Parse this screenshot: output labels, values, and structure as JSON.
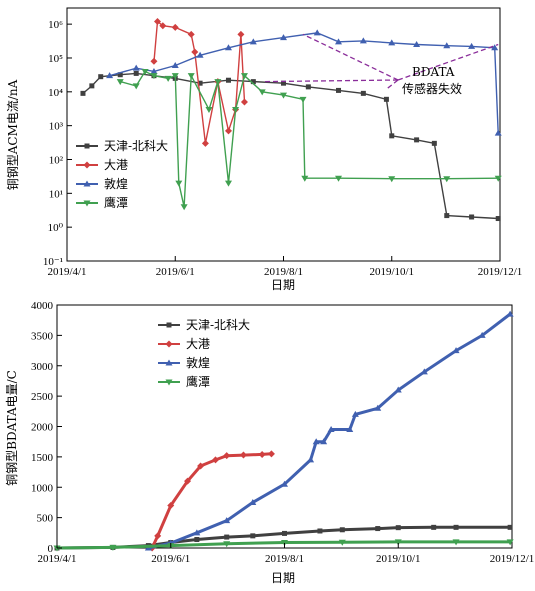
{
  "chart_data": [
    {
      "type": "line",
      "yscale": "log",
      "ylabel": "铜钢型ACM电流/nA",
      "xlabel": "日期",
      "x_ticks": [
        "2019/4/1",
        "2019/6/1",
        "2019/8/1",
        "2019/10/1",
        "2019/12/1"
      ],
      "xlim": [
        "2019/4/1",
        "2019/12/1"
      ],
      "ylim": [
        0.1,
        3000000
      ],
      "y_ticks": [
        {
          "value": 0.1,
          "label": "10⁻¹"
        },
        {
          "value": 1,
          "label": "10⁰"
        },
        {
          "value": 10,
          "label": "10¹"
        },
        {
          "value": 100,
          "label": "10²"
        },
        {
          "value": 1000,
          "label": "10³"
        },
        {
          "value": 10000,
          "label": "10⁴"
        },
        {
          "value": 100000,
          "label": "10⁵"
        },
        {
          "value": 1000000,
          "label": "10⁶"
        }
      ],
      "legend_position": "lower-left",
      "annotation": {
        "line1": "BDATA",
        "line2": "传感器失效",
        "targets": [
          "2019/7/20",
          "2019/8/12",
          "2019/9/28",
          "2019/11/30"
        ]
      },
      "series": [
        {
          "name": "天津-北科大",
          "color": "#404040",
          "marker": "square",
          "points": [
            [
              "2019/4/10",
              9000
            ],
            [
              "2019/4/15",
              15000
            ],
            [
              "2019/4/20",
              28000
            ],
            [
              "2019/5/1",
              32000
            ],
            [
              "2019/5/10",
              35000
            ],
            [
              "2019/5/20",
              30000
            ],
            [
              "2019/6/1",
              25000
            ],
            [
              "2019/6/15",
              18000
            ],
            [
              "2019/7/1",
              22000
            ],
            [
              "2019/7/15",
              20000
            ],
            [
              "2019/8/1",
              18000
            ],
            [
              "2019/8/15",
              14000
            ],
            [
              "2019/9/1",
              11000
            ],
            [
              "2019/9/15",
              9000
            ],
            [
              "2019/9/28",
              6000
            ],
            [
              "2019/10/1",
              500
            ],
            [
              "2019/10/15",
              380
            ],
            [
              "2019/10/25",
              300
            ],
            [
              "2019/11/1",
              2.2
            ],
            [
              "2019/11/15",
              2.0
            ],
            [
              "2019/11/30",
              1.8
            ]
          ]
        },
        {
          "name": "大港",
          "color": "#d04040",
          "marker": "diamond",
          "points": [
            [
              "2019/5/20",
              80000
            ],
            [
              "2019/5/22",
              1200000
            ],
            [
              "2019/5/25",
              900000
            ],
            [
              "2019/6/1",
              800000
            ],
            [
              "2019/6/10",
              500000
            ],
            [
              "2019/6/12",
              150000
            ],
            [
              "2019/6/18",
              300
            ],
            [
              "2019/6/25",
              20000
            ],
            [
              "2019/7/1",
              700
            ],
            [
              "2019/7/5",
              3000
            ],
            [
              "2019/7/8",
              500000
            ],
            [
              "2019/7/10",
              5000
            ]
          ]
        },
        {
          "name": "敦煌",
          "color": "#4060b0",
          "marker": "triangle-up",
          "points": [
            [
              "2019/4/25",
              30000
            ],
            [
              "2019/5/10",
              50000
            ],
            [
              "2019/5/20",
              40000
            ],
            [
              "2019/6/1",
              60000
            ],
            [
              "2019/6/15",
              120000
            ],
            [
              "2019/7/1",
              200000
            ],
            [
              "2019/7/15",
              300000
            ],
            [
              "2019/8/1",
              400000
            ],
            [
              "2019/8/20",
              550000
            ],
            [
              "2019/9/1",
              300000
            ],
            [
              "2019/9/15",
              320000
            ],
            [
              "2019/10/1",
              280000
            ],
            [
              "2019/10/15",
              250000
            ],
            [
              "2019/11/1",
              230000
            ],
            [
              "2019/11/15",
              220000
            ],
            [
              "2019/11/28",
              200000
            ],
            [
              "2019/11/30",
              600
            ]
          ]
        },
        {
          "name": "鹰潭",
          "color": "#40a050",
          "marker": "triangle-down",
          "points": [
            [
              "2019/5/1",
              20000
            ],
            [
              "2019/5/10",
              15000
            ],
            [
              "2019/5/15",
              40000
            ],
            [
              "2019/5/20",
              30000
            ],
            [
              "2019/5/28",
              25000
            ],
            [
              "2019/6/1",
              30000
            ],
            [
              "2019/6/3",
              20
            ],
            [
              "2019/6/6",
              4
            ],
            [
              "2019/6/10",
              30000
            ],
            [
              "2019/6/20",
              3000
            ],
            [
              "2019/6/25",
              20000
            ],
            [
              "2019/7/1",
              20
            ],
            [
              "2019/7/5",
              3000
            ],
            [
              "2019/7/10",
              30000
            ],
            [
              "2019/7/20",
              10000
            ],
            [
              "2019/8/1",
              8000
            ],
            [
              "2019/8/12",
              6000
            ],
            [
              "2019/8/13",
              28
            ],
            [
              "2019/9/1",
              28
            ],
            [
              "2019/10/1",
              27
            ],
            [
              "2019/11/1",
              27
            ],
            [
              "2019/11/30",
              28
            ]
          ]
        }
      ]
    },
    {
      "type": "line",
      "ylabel": "铜钢型BDATA电量/C",
      "xlabel": "日期",
      "x_ticks": [
        "2019/4/1",
        "2019/6/1",
        "2019/8/1",
        "2019/10/1",
        "2019/12/1"
      ],
      "xlim": [
        "2019/4/1",
        "2019/12/1"
      ],
      "ylim": [
        0,
        4000
      ],
      "y_ticks": [
        0,
        500,
        1000,
        1500,
        2000,
        2500,
        3000,
        3500,
        4000
      ],
      "legend_position": "top-center",
      "series": [
        {
          "name": "天津-北科大",
          "color": "#404040",
          "marker": "square",
          "points": [
            [
              "2019/4/1",
              0
            ],
            [
              "2019/5/1",
              10
            ],
            [
              "2019/5/20",
              40
            ],
            [
              "2019/6/1",
              90
            ],
            [
              "2019/6/15",
              140
            ],
            [
              "2019/7/1",
              180
            ],
            [
              "2019/7/15",
              200
            ],
            [
              "2019/8/1",
              240
            ],
            [
              "2019/8/20",
              280
            ],
            [
              "2019/9/1",
              300
            ],
            [
              "2019/9/20",
              320
            ],
            [
              "2019/10/1",
              335
            ],
            [
              "2019/10/20",
              340
            ],
            [
              "2019/11/1",
              340
            ],
            [
              "2019/11/30",
              340
            ]
          ]
        },
        {
          "name": "大港",
          "color": "#d04040",
          "marker": "diamond",
          "points": [
            [
              "2019/5/22",
              0
            ],
            [
              "2019/5/25",
              200
            ],
            [
              "2019/6/1",
              700
            ],
            [
              "2019/6/10",
              1100
            ],
            [
              "2019/6/17",
              1350
            ],
            [
              "2019/6/25",
              1450
            ],
            [
              "2019/7/1",
              1520
            ],
            [
              "2019/7/10",
              1530
            ],
            [
              "2019/7/20",
              1540
            ],
            [
              "2019/7/25",
              1550
            ]
          ]
        },
        {
          "name": "敦煌",
          "color": "#4060b0",
          "marker": "triangle-up",
          "points": [
            [
              "2019/5/20",
              0
            ],
            [
              "2019/6/1",
              80
            ],
            [
              "2019/6/15",
              250
            ],
            [
              "2019/7/1",
              450
            ],
            [
              "2019/7/15",
              750
            ],
            [
              "2019/8/1",
              1050
            ],
            [
              "2019/8/15",
              1450
            ],
            [
              "2019/8/18",
              1750
            ],
            [
              "2019/8/22",
              1750
            ],
            [
              "2019/8/26",
              1950
            ],
            [
              "2019/9/5",
              1950
            ],
            [
              "2019/9/8",
              2200
            ],
            [
              "2019/9/20",
              2300
            ],
            [
              "2019/10/1",
              2600
            ],
            [
              "2019/10/15",
              2900
            ],
            [
              "2019/11/1",
              3250
            ],
            [
              "2019/11/15",
              3500
            ],
            [
              "2019/11/30",
              3850
            ]
          ]
        },
        {
          "name": "鹰潭",
          "color": "#40a050",
          "marker": "triangle-down",
          "points": [
            [
              "2019/4/1",
              0
            ],
            [
              "2019/5/1",
              10
            ],
            [
              "2019/6/1",
              40
            ],
            [
              "2019/7/1",
              70
            ],
            [
              "2019/8/1",
              90
            ],
            [
              "2019/9/1",
              95
            ],
            [
              "2019/10/1",
              100
            ],
            [
              "2019/11/1",
              100
            ],
            [
              "2019/11/30",
              100
            ]
          ]
        }
      ]
    }
  ]
}
